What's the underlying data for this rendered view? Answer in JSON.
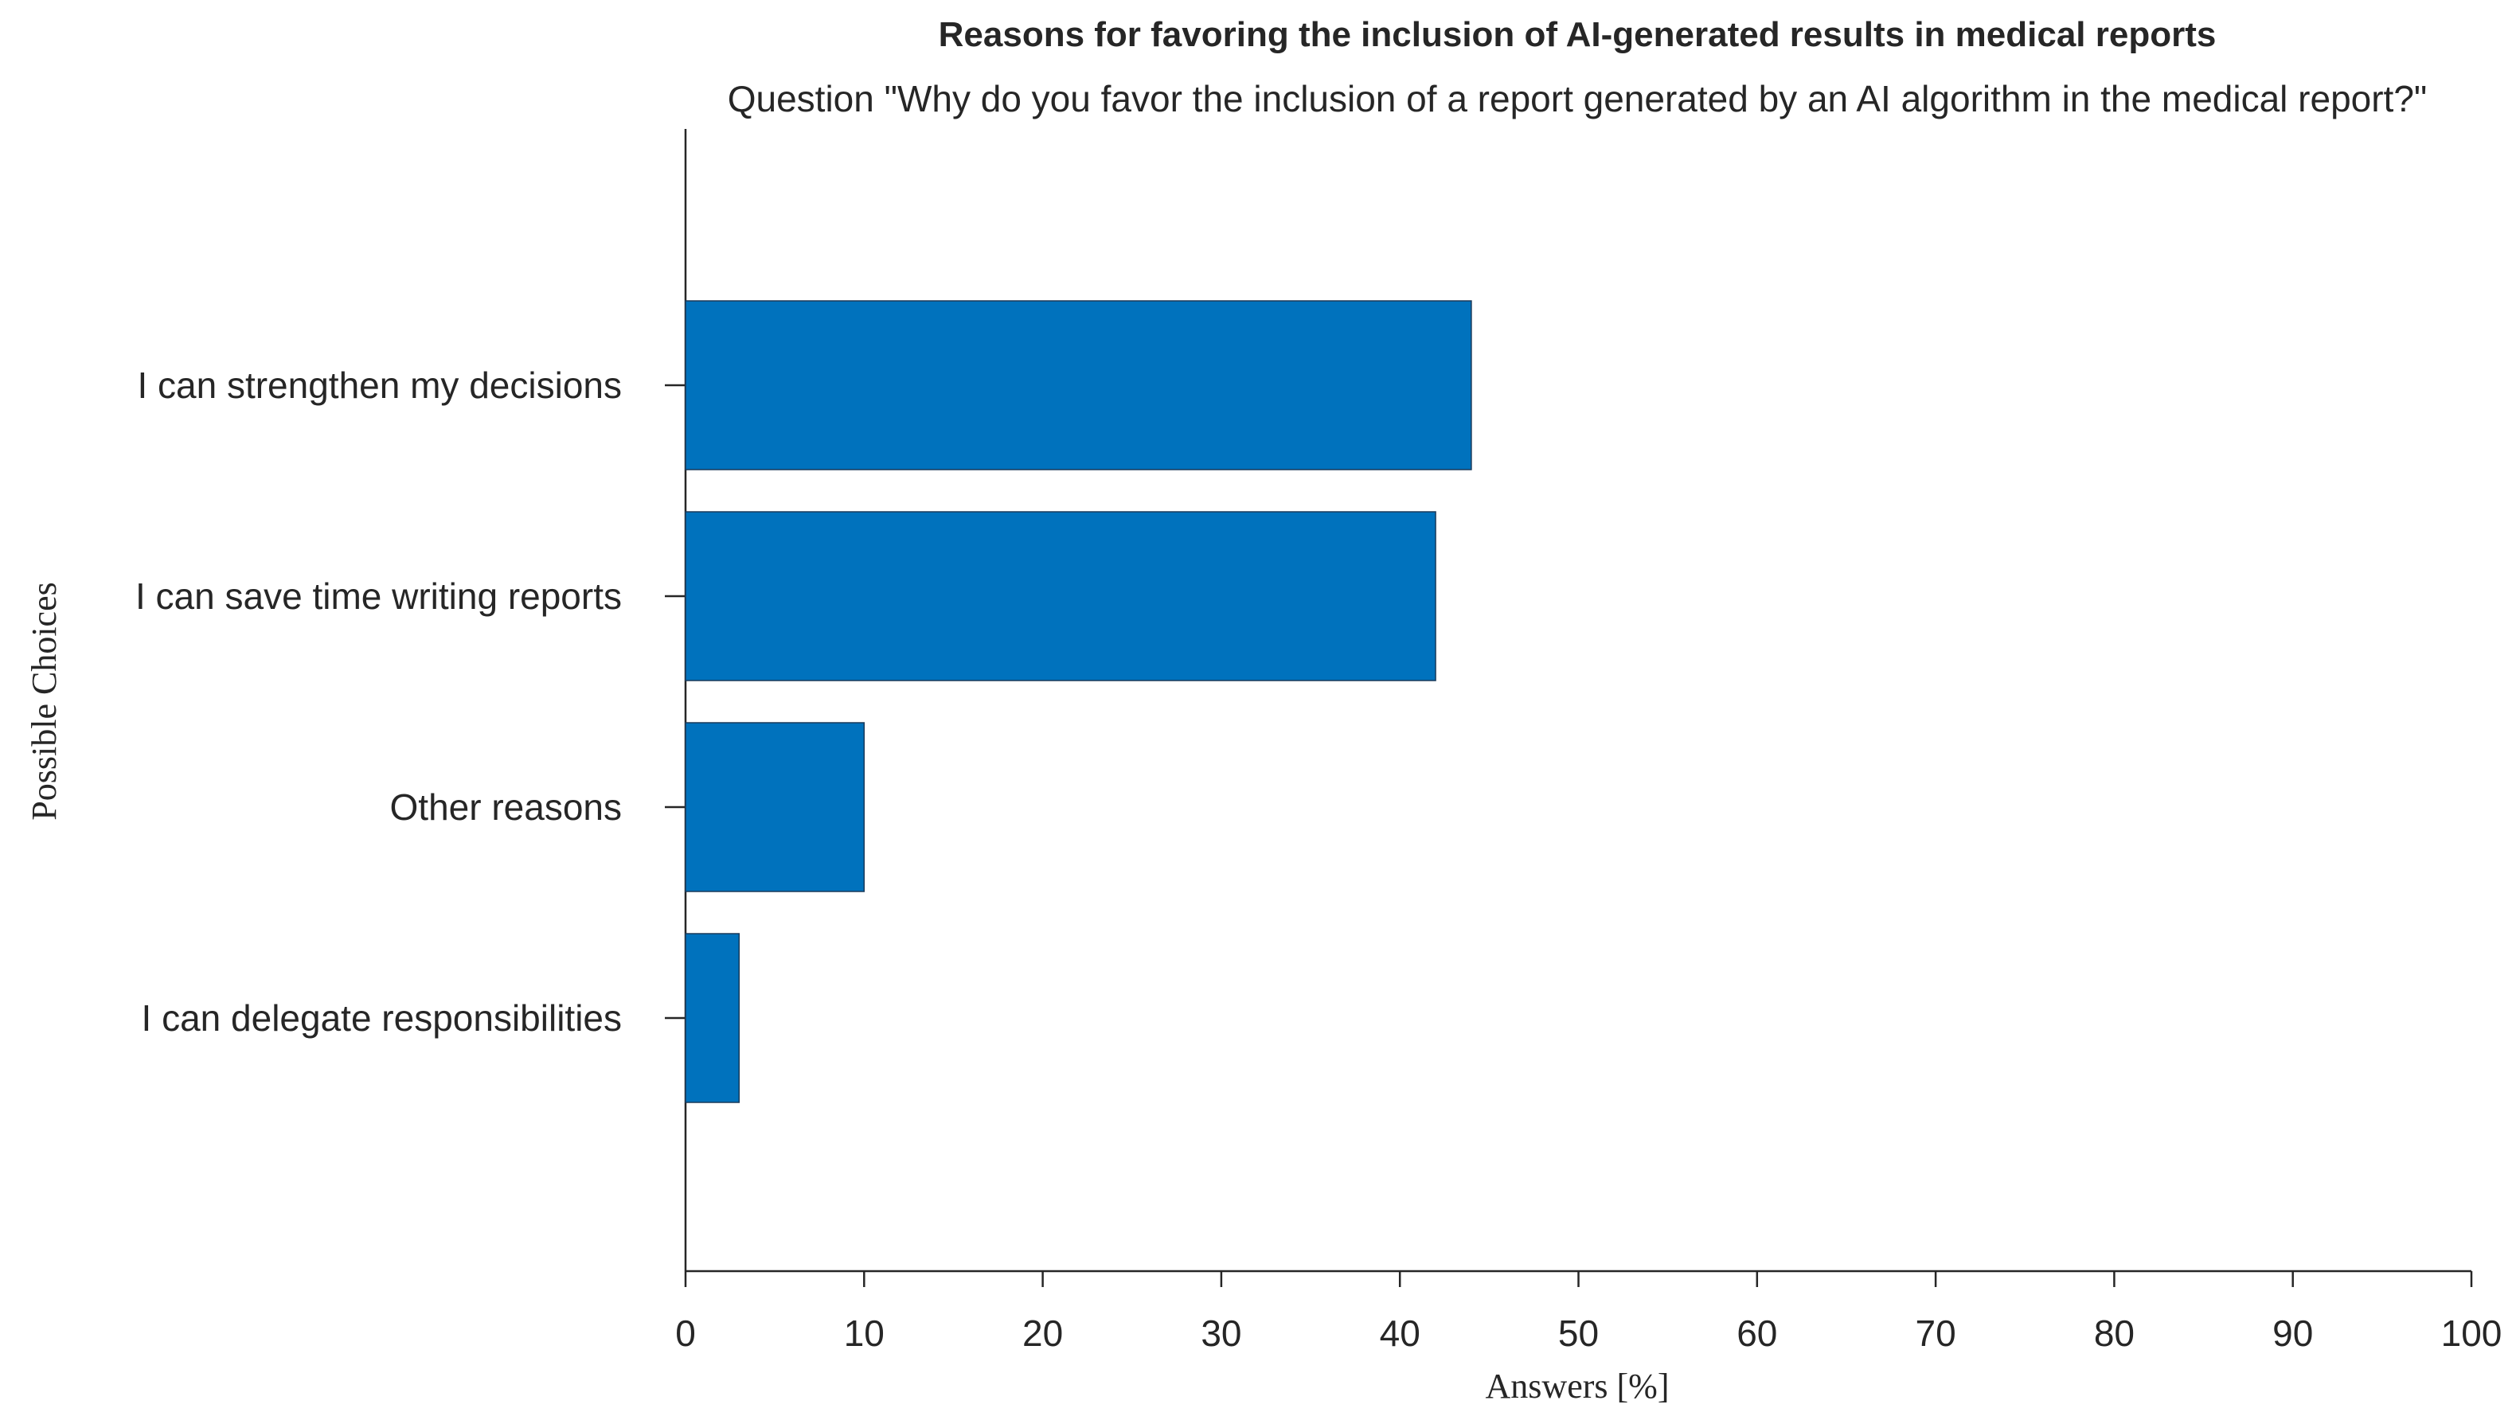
{
  "chart_data": {
    "type": "barh",
    "title": "Reasons for favoring the inclusion of AI-generated results in medical reports",
    "subtitle": "Question \"Why do you favor the inclusion of a report generated by an AI algorithm in the medical report?\"",
    "x_label": "Answers [%]",
    "y_label": "Possible Choices",
    "categories": [
      "I can strengthen my decisions",
      "I can save time writing reports",
      "Other reasons",
      "I can delegate responsibilities"
    ],
    "values": [
      44,
      42,
      10,
      3
    ],
    "color": "#0072bd",
    "xlim": [
      0,
      100
    ],
    "xticks": [
      0,
      10,
      20,
      30,
      40,
      50,
      60,
      70,
      80,
      90,
      100
    ]
  }
}
